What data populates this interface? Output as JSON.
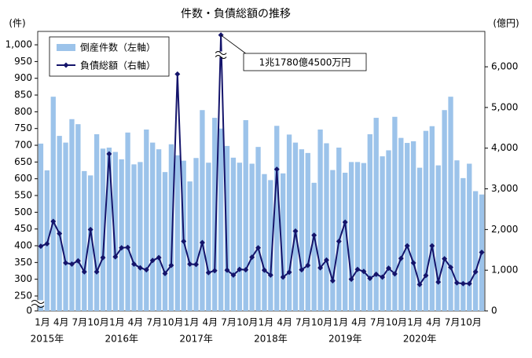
{
  "chart_data": {
    "type": "bar-line",
    "title": "件数・負債総額の推移",
    "y_label": "(件)",
    "y2_label": "(億円)",
    "categories": [
      "1月",
      null,
      null,
      "4月",
      null,
      null,
      "7月",
      null,
      null,
      "10月",
      null,
      null,
      "1月",
      null,
      null,
      "4月",
      null,
      null,
      "7月",
      null,
      null,
      "10月",
      null,
      null,
      "1月",
      null,
      null,
      "4月",
      null,
      null,
      "7月",
      null,
      null,
      "10月",
      null,
      null,
      "1月",
      null,
      null,
      "4月",
      null,
      null,
      "7月",
      null,
      null,
      "10月",
      null,
      null,
      "1月",
      null,
      null,
      "4月",
      null,
      null,
      "7月",
      null,
      null,
      "10月",
      null,
      null,
      "1月",
      null,
      null,
      "4月",
      null,
      null,
      "7月",
      null,
      null,
      "10月",
      null,
      null
    ],
    "years": [
      "2015年",
      "2016年",
      "2017年",
      "2018年",
      "2019年",
      "2020年"
    ],
    "series": [
      {
        "name": "倒産件数（左軸）",
        "color": "#9cc3ea",
        "values": [
          705,
          625,
          845,
          728,
          708,
          778,
          763,
          623,
          610,
          733,
          690,
          693,
          680,
          658,
          738,
          643,
          650,
          747,
          708,
          688,
          620,
          703,
          670,
          654,
          592,
          662,
          805,
          648,
          782,
          750,
          698,
          663,
          648,
          775,
          645,
          695,
          614,
          596,
          758,
          616,
          732,
          708,
          688,
          677,
          588,
          747,
          706,
          626,
          693,
          618,
          650,
          650,
          647,
          733,
          782,
          667,
          685,
          785,
          722,
          707,
          712,
          633,
          743,
          757,
          640,
          805,
          845,
          655,
          602,
          645,
          563,
          553
        ]
      },
      {
        "name": "負債総額（右軸）",
        "color": "#14146b",
        "axis": "y2",
        "values": [
          1590,
          1650,
          2200,
          1900,
          1180,
          1150,
          1230,
          960,
          2000,
          960,
          1310,
          3860,
          1330,
          1550,
          1560,
          1150,
          1060,
          1010,
          1240,
          1310,
          920,
          1120,
          5820,
          1710,
          1150,
          1140,
          1680,
          940,
          990,
          11780,
          1000,
          880,
          1020,
          1010,
          1320,
          1550,
          1000,
          880,
          3480,
          830,
          950,
          1960,
          1010,
          1120,
          1860,
          1060,
          1250,
          740,
          1710,
          2180,
          780,
          1020,
          970,
          800,
          900,
          830,
          1050,
          910,
          1290,
          1600,
          1180,
          650,
          870,
          1600,
          710,
          1280,
          1070,
          690,
          670,
          670,
          960,
          1440
        ]
      }
    ],
    "ylim": [
      0,
      1040
    ],
    "y_break": [
      0,
      250
    ],
    "yticks": [
      0,
      250,
      300,
      350,
      400,
      450,
      500,
      550,
      600,
      650,
      700,
      750,
      800,
      850,
      900,
      950,
      {
        "value": 1000,
        "label": "1,000"
      }
    ],
    "y2lim": [
      0,
      6870
    ],
    "y2_break": [
      6300,
      11300
    ],
    "y2ticks": [
      0,
      {
        "value": 1000,
        "label": "1,000"
      },
      {
        "value": 2000,
        "label": "2,000"
      },
      {
        "value": 3000,
        "label": "3,000"
      },
      {
        "value": 4000,
        "label": "4,000"
      },
      {
        "value": 5000,
        "label": "5,000"
      },
      {
        "value": 6000,
        "label": "6,000"
      }
    ],
    "annotation": {
      "text": "1兆1780億4500万円",
      "index": 29
    },
    "legend": "top-left",
    "grid": false
  }
}
